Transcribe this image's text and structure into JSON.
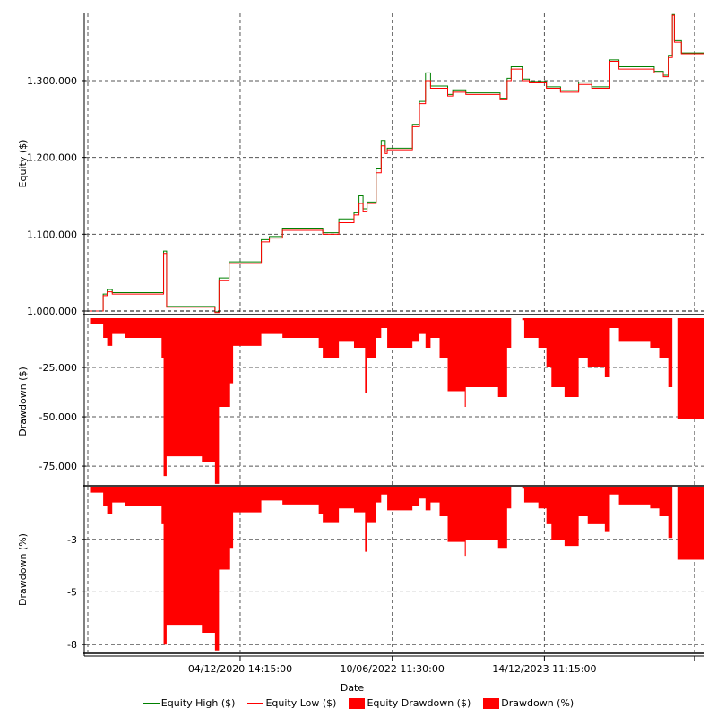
{
  "chart_data": {
    "type": "line",
    "xlabel": "Date",
    "x_ticks": [
      {
        "value": 2020.93,
        "label": "04/12/2020 14:15:00"
      },
      {
        "value": 2022.44,
        "label": "10/06/2022 11:30:00"
      },
      {
        "value": 2023.95,
        "label": "14/12/2023 11:15:00"
      },
      {
        "value": 2025.44,
        "label": ""
      }
    ],
    "xlim": [
      2019.4,
      2025.53
    ],
    "legend": {
      "placement": "bottom",
      "entries": [
        "Equity High ($)",
        "Equity Low ($)",
        "Equity Drawdown ($)",
        "Drawdown (%)"
      ]
    },
    "colors": {
      "high": "#008000",
      "low": "#ff0000",
      "fill": "#ff0000"
    },
    "panels": [
      {
        "ylabel": "Equity ($)",
        "ylim": [
          996500,
          1387500
        ],
        "y_ticks": [
          {
            "value": 1000000,
            "label": "1.000.000"
          },
          {
            "value": 1100000,
            "label": "1.100.000"
          },
          {
            "value": 1200000,
            "label": "1.200.000"
          },
          {
            "value": 1300000,
            "label": "1.300.000"
          }
        ],
        "x": [
          2019.4,
          2019.57,
          2019.61,
          2019.66,
          2020.15,
          2020.17,
          2020.2,
          2020.68,
          2020.72,
          2020.82,
          2021.14,
          2021.22,
          2021.35,
          2021.75,
          2021.91,
          2022.06,
          2022.11,
          2022.15,
          2022.19,
          2022.28,
          2022.33,
          2022.37,
          2022.39,
          2022.64,
          2022.71,
          2022.77,
          2022.82,
          2022.99,
          2023.04,
          2023.17,
          2023.51,
          2023.58,
          2023.62,
          2023.73,
          2023.8,
          2023.97,
          2024.11,
          2024.29,
          2024.42,
          2024.6,
          2024.69,
          2025.04,
          2025.13,
          2025.18,
          2025.22,
          2025.24,
          2025.31,
          2025.53
        ],
        "series": [
          {
            "name": "Equity High ($)",
            "values": [
              1000000,
              1022000,
              1028000,
              1024000,
              1024000,
              1078000,
              1006000,
              999000,
              1043000,
              1064000,
              1093000,
              1097000,
              1108000,
              1102000,
              1120000,
              1128000,
              1150000,
              1133000,
              1142000,
              1185000,
              1222000,
              1208000,
              1212000,
              1243000,
              1273000,
              1310000,
              1293000,
              1282000,
              1288000,
              1284000,
              1277000,
              1303000,
              1318000,
              1302000,
              1299000,
              1292000,
              1287000,
              1298000,
              1292000,
              1327000,
              1318000,
              1312000,
              1307000,
              1333000,
              1386000,
              1352000,
              1336000,
              1335000
            ]
          },
          {
            "name": "Equity Low ($)",
            "values": [
              1000000,
              1020000,
              1025000,
              1022000,
              1022000,
              1075000,
              1005000,
              998000,
              1040000,
              1062000,
              1090000,
              1095000,
              1105000,
              1100000,
              1115000,
              1125000,
              1140000,
              1130000,
              1140000,
              1180000,
              1215000,
              1205000,
              1210000,
              1240000,
              1270000,
              1300000,
              1290000,
              1280000,
              1285000,
              1282000,
              1275000,
              1300000,
              1315000,
              1300000,
              1297000,
              1290000,
              1285000,
              1295000,
              1290000,
              1325000,
              1315000,
              1310000,
              1305000,
              1330000,
              1385000,
              1350000,
              1335000,
              1335000
            ]
          }
        ]
      },
      {
        "ylabel": "Drawdown ($)",
        "type": "area",
        "ylim": [
          -84500,
          0
        ],
        "y_ticks": [
          {
            "value": -25000,
            "label": "-25.000"
          },
          {
            "value": -50000,
            "label": "-50.000"
          },
          {
            "value": -75000,
            "label": "-75.000"
          }
        ],
        "x": [
          2019.4,
          2019.44,
          2019.57,
          2019.61,
          2019.66,
          2019.79,
          2020.15,
          2020.17,
          2020.2,
          2020.55,
          2020.68,
          2020.72,
          2020.83,
          2020.86,
          2021.14,
          2021.35,
          2021.71,
          2021.75,
          2021.91,
          2022.06,
          2022.17,
          2022.19,
          2022.28,
          2022.33,
          2022.39,
          2022.64,
          2022.71,
          2022.77,
          2022.82,
          2022.91,
          2022.99,
          2023.16,
          2023.17,
          2023.49,
          2023.58,
          2023.62,
          2023.73,
          2023.75,
          2023.89,
          2023.97,
          2024.02,
          2024.15,
          2024.29,
          2024.38,
          2024.55,
          2024.6,
          2024.69,
          2025.0,
          2025.09,
          2025.18,
          2025.22,
          2025.27,
          2025.53
        ],
        "series": [
          {
            "name": "Equity Drawdown ($)",
            "values": [
              0,
              -3000,
              -10000,
              -14000,
              -8000,
              -10000,
              -20000,
              -80000,
              -70000,
              -73000,
              -84000,
              -45000,
              -33000,
              -14000,
              -8000,
              -10000,
              -15000,
              -20000,
              -12000,
              -15000,
              -38000,
              -20000,
              -10000,
              -5000,
              -15000,
              -12000,
              -8000,
              -15000,
              -10000,
              -20000,
              -37000,
              -45000,
              -35000,
              -40000,
              -15000,
              0,
              -1000,
              -10000,
              -15000,
              -25000,
              -35000,
              -40000,
              -20000,
              -25000,
              -30000,
              -5000,
              -12000,
              -15000,
              -20000,
              -35000,
              0,
              -51000,
              -51000
            ]
          }
        ]
      },
      {
        "ylabel": "Drawdown (%)",
        "type": "area",
        "ylim": [
          -8.4,
          0
        ],
        "y_ticks": [
          {
            "value": -2.67,
            "label": "-3"
          },
          {
            "value": -5.33,
            "label": "-5"
          },
          {
            "value": -8.0,
            "label": "-8"
          }
        ],
        "x": [
          2019.4,
          2019.44,
          2019.57,
          2019.61,
          2019.66,
          2019.79,
          2020.15,
          2020.17,
          2020.2,
          2020.55,
          2020.68,
          2020.72,
          2020.83,
          2020.86,
          2021.14,
          2021.35,
          2021.71,
          2021.75,
          2021.91,
          2022.06,
          2022.17,
          2022.19,
          2022.28,
          2022.33,
          2022.39,
          2022.64,
          2022.71,
          2022.77,
          2022.82,
          2022.91,
          2022.99,
          2023.16,
          2023.17,
          2023.49,
          2023.58,
          2023.62,
          2023.73,
          2023.75,
          2023.89,
          2023.97,
          2024.02,
          2024.15,
          2024.29,
          2024.38,
          2024.55,
          2024.6,
          2024.69,
          2025.0,
          2025.09,
          2025.18,
          2025.22,
          2025.27,
          2025.53
        ],
        "series": [
          {
            "name": "Drawdown (%)",
            "values": [
              0,
              -0.3,
              -1.0,
              -1.4,
              -0.8,
              -1.0,
              -1.9,
              -8.0,
              -7.0,
              -7.4,
              -8.3,
              -4.2,
              -3.1,
              -1.3,
              -0.7,
              -0.9,
              -1.4,
              -1.8,
              -1.1,
              -1.3,
              -3.3,
              -1.8,
              -0.8,
              -0.4,
              -1.2,
              -1.0,
              -0.6,
              -1.2,
              -0.8,
              -1.5,
              -2.8,
              -3.5,
              -2.7,
              -3.1,
              -1.1,
              0,
              -0.1,
              -0.8,
              -1.1,
              -1.9,
              -2.7,
              -3.0,
              -1.5,
              -1.9,
              -2.3,
              -0.4,
              -0.9,
              -1.1,
              -1.5,
              -2.6,
              0,
              -3.7,
              -3.7
            ]
          }
        ]
      }
    ]
  }
}
